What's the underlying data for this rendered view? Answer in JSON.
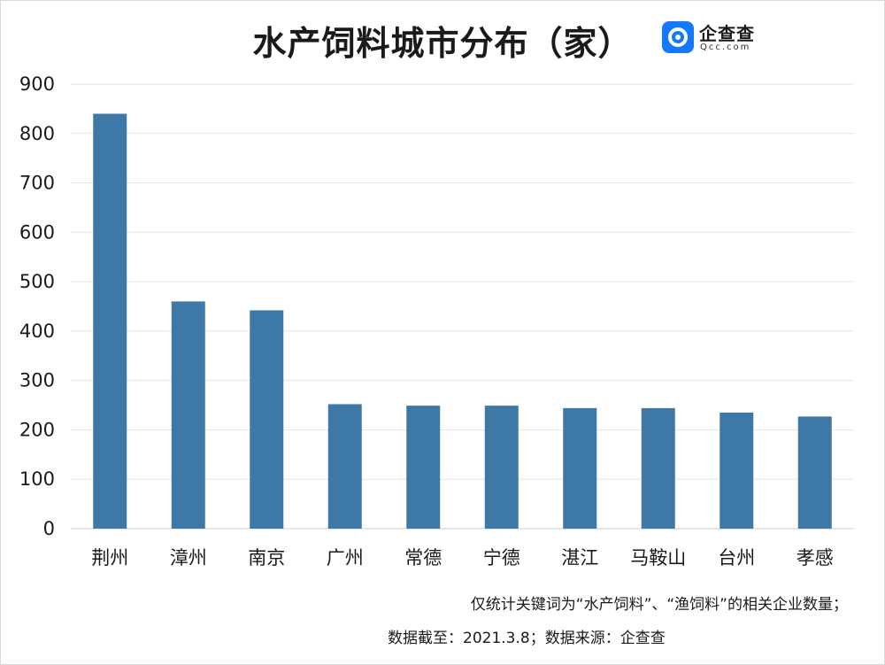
{
  "title": "水产饲料城市分布（家）",
  "logo": {
    "name": "企查查",
    "domain": "Qcc.com",
    "icon": "magnifier-logo-icon",
    "color": "#1677ff"
  },
  "chart_data": {
    "type": "bar",
    "categories": [
      "荆州",
      "漳州",
      "南京",
      "广州",
      "常德",
      "宁德",
      "湛江",
      "马鞍山",
      "台州",
      "孝感"
    ],
    "values": [
      840,
      460,
      442,
      252,
      249,
      249,
      244,
      244,
      235,
      227
    ],
    "ylim": [
      0,
      900
    ],
    "yticks": [
      "0",
      "100",
      "200",
      "300",
      "400",
      "500",
      "600",
      "700",
      "800",
      "900"
    ],
    "grid": true,
    "bar_color": "#3d78a6"
  },
  "notes": {
    "line1": "仅统计关键词为“水产饲料”、“渔饲料”的相关企业数量；",
    "line2": "数据截至：2021.3.8；数据来源：企查查"
  }
}
